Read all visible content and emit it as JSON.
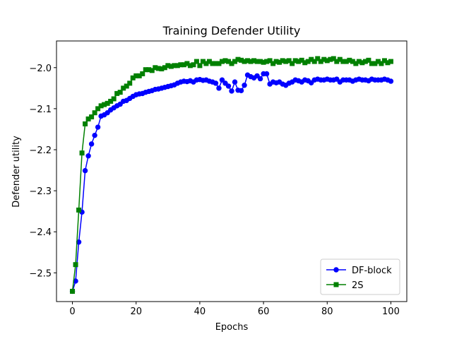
{
  "chart_data": {
    "type": "line",
    "title": "Training Defender Utility",
    "xlabel": "Epochs",
    "ylabel": "Defender utility",
    "xlim": [
      -5,
      105
    ],
    "ylim": [
      -2.57,
      -1.935
    ],
    "xticks": [
      0,
      20,
      40,
      60,
      80,
      100
    ],
    "yticks": [
      -2.5,
      -2.4,
      -2.3,
      -2.2,
      -2.1,
      -2.0
    ],
    "ytick_labels": [
      "−2.5",
      "−2.4",
      "−2.3",
      "−2.2",
      "−2.1",
      "−2.0"
    ],
    "grid": false,
    "legend_position": "lower right",
    "series": [
      {
        "name": "DF-block",
        "color": "#0000ff",
        "marker": "circle",
        "x": [
          0,
          1,
          2,
          3,
          4,
          5,
          6,
          7,
          8,
          9,
          10,
          11,
          12,
          13,
          14,
          15,
          16,
          17,
          18,
          19,
          20,
          21,
          22,
          23,
          24,
          25,
          26,
          27,
          28,
          29,
          30,
          31,
          32,
          33,
          34,
          35,
          36,
          37,
          38,
          39,
          40,
          41,
          42,
          43,
          44,
          45,
          46,
          47,
          48,
          49,
          50,
          51,
          52,
          53,
          54,
          55,
          56,
          57,
          58,
          59,
          60,
          61,
          62,
          63,
          64,
          65,
          66,
          67,
          68,
          69,
          70,
          71,
          72,
          73,
          74,
          75,
          76,
          77,
          78,
          79,
          80,
          81,
          82,
          83,
          84,
          85,
          86,
          87,
          88,
          89,
          90,
          91,
          92,
          93,
          94,
          95,
          96,
          97,
          98,
          99,
          100
        ],
        "y": [
          -2.545,
          -2.52,
          -2.425,
          -2.352,
          -2.251,
          -2.215,
          -2.186,
          -2.165,
          -2.145,
          -2.118,
          -2.115,
          -2.11,
          -2.103,
          -2.098,
          -2.093,
          -2.089,
          -2.082,
          -2.08,
          -2.075,
          -2.07,
          -2.066,
          -2.064,
          -2.063,
          -2.06,
          -2.058,
          -2.056,
          -2.053,
          -2.052,
          -2.05,
          -2.048,
          -2.046,
          -2.044,
          -2.042,
          -2.038,
          -2.035,
          -2.033,
          -2.034,
          -2.032,
          -2.035,
          -2.03,
          -2.029,
          -2.031,
          -2.03,
          -2.033,
          -2.035,
          -2.038,
          -2.05,
          -2.03,
          -2.038,
          -2.045,
          -2.057,
          -2.035,
          -2.055,
          -2.056,
          -2.043,
          -2.018,
          -2.022,
          -2.025,
          -2.02,
          -2.027,
          -2.015,
          -2.015,
          -2.04,
          -2.035,
          -2.037,
          -2.035,
          -2.04,
          -2.043,
          -2.038,
          -2.035,
          -2.03,
          -2.032,
          -2.035,
          -2.03,
          -2.032,
          -2.037,
          -2.03,
          -2.028,
          -2.03,
          -2.03,
          -2.028,
          -2.03,
          -2.03,
          -2.028,
          -2.035,
          -2.03,
          -2.03,
          -2.03,
          -2.033,
          -2.03,
          -2.028,
          -2.03,
          -2.03,
          -2.032,
          -2.028,
          -2.03,
          -2.03,
          -2.03,
          -2.028,
          -2.03,
          -2.033
        ]
      },
      {
        "name": "2S",
        "color": "#008000",
        "marker": "square",
        "x": [
          0,
          1,
          2,
          3,
          4,
          5,
          6,
          7,
          8,
          9,
          10,
          11,
          12,
          13,
          14,
          15,
          16,
          17,
          18,
          19,
          20,
          21,
          22,
          23,
          24,
          25,
          26,
          27,
          28,
          29,
          30,
          31,
          32,
          33,
          34,
          35,
          36,
          37,
          38,
          39,
          40,
          41,
          42,
          43,
          44,
          45,
          46,
          47,
          48,
          49,
          50,
          51,
          52,
          53,
          54,
          55,
          56,
          57,
          58,
          59,
          60,
          61,
          62,
          63,
          64,
          65,
          66,
          67,
          68,
          69,
          70,
          71,
          72,
          73,
          74,
          75,
          76,
          77,
          78,
          79,
          80,
          81,
          82,
          83,
          84,
          85,
          86,
          87,
          88,
          89,
          90,
          91,
          92,
          93,
          94,
          95,
          96,
          97,
          98,
          99,
          100
        ],
        "y": [
          -2.545,
          -2.48,
          -2.347,
          -2.208,
          -2.137,
          -2.125,
          -2.12,
          -2.11,
          -2.1,
          -2.093,
          -2.09,
          -2.087,
          -2.082,
          -2.076,
          -2.063,
          -2.06,
          -2.05,
          -2.045,
          -2.038,
          -2.025,
          -2.02,
          -2.02,
          -2.015,
          -2.005,
          -2.005,
          -2.007,
          -2.0,
          -2.002,
          -2.003,
          -2.0,
          -1.995,
          -1.997,
          -1.995,
          -1.995,
          -1.993,
          -1.993,
          -1.99,
          -1.995,
          -1.993,
          -1.985,
          -1.995,
          -1.985,
          -1.99,
          -1.985,
          -1.99,
          -1.99,
          -1.99,
          -1.985,
          -1.983,
          -1.985,
          -1.99,
          -1.985,
          -1.98,
          -1.982,
          -1.985,
          -1.983,
          -1.985,
          -1.983,
          -1.985,
          -1.985,
          -1.987,
          -1.985,
          -1.983,
          -1.99,
          -1.985,
          -1.987,
          -1.983,
          -1.985,
          -1.983,
          -1.99,
          -1.983,
          -1.985,
          -1.982,
          -1.988,
          -1.985,
          -1.98,
          -1.985,
          -1.978,
          -1.985,
          -1.98,
          -1.983,
          -1.98,
          -1.978,
          -1.985,
          -1.98,
          -1.985,
          -1.985,
          -1.982,
          -1.985,
          -1.99,
          -1.985,
          -1.988,
          -1.985,
          -1.982,
          -1.99,
          -1.99,
          -1.985,
          -1.99,
          -1.983,
          -1.988,
          -1.985
        ]
      }
    ]
  }
}
